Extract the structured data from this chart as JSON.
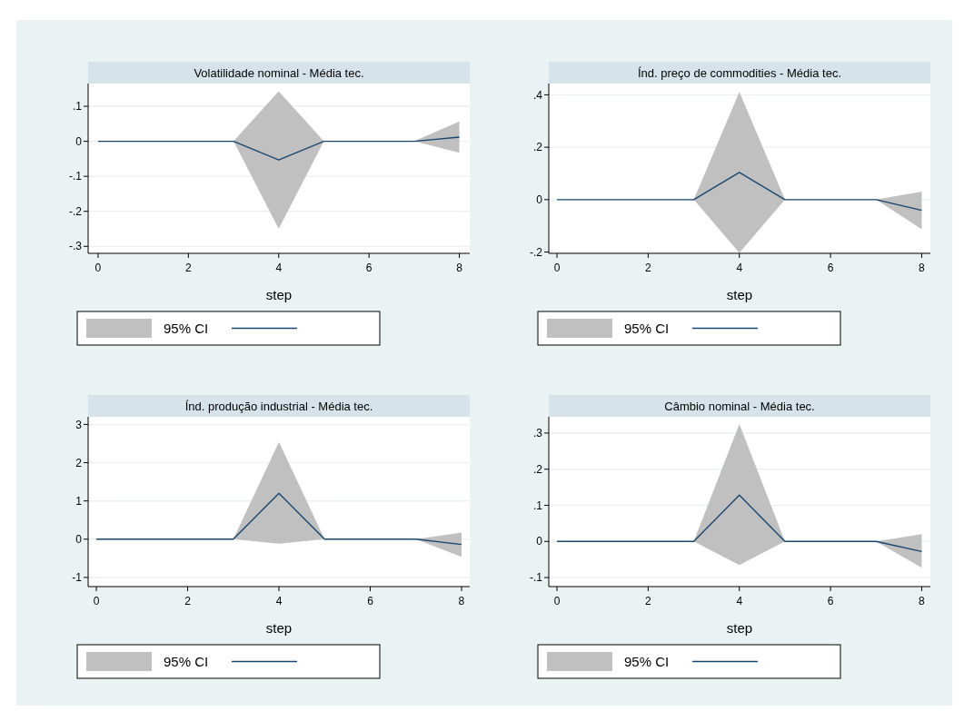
{
  "chart_data": [
    {
      "type": "line",
      "title": "Volatilidade nominal - Média tec.",
      "xlabel": "step",
      "x": [
        0,
        1,
        2,
        3,
        4,
        5,
        6,
        7,
        8
      ],
      "xlim": [
        -0.22,
        8.23
      ],
      "xticks": [
        0,
        2,
        4,
        6,
        8
      ],
      "ylim": [
        -0.32,
        0.165
      ],
      "yticks": [
        {
          "value": -0.3,
          "label": "-.3"
        },
        {
          "value": -0.2,
          "label": "-.2"
        },
        {
          "value": -0.1,
          "label": "-.1"
        },
        0,
        {
          "value": 0.1,
          "label": ".1"
        }
      ],
      "grid": "y",
      "annotations": [
        "95% CI"
      ],
      "series": [
        {
          "color": "#1a476f",
          "values": [
            0,
            0,
            0,
            0,
            -0.053,
            0,
            0,
            0,
            0.012
          ],
          "lower": [
            0,
            0,
            0,
            0,
            -0.25,
            0,
            0,
            0,
            -0.033
          ],
          "upper": [
            0,
            0,
            0,
            0,
            0.143,
            0,
            0,
            0,
            0.057
          ]
        }
      ]
    },
    {
      "type": "line",
      "title": "Índ. preço de commodities - Média tec.",
      "xlabel": "step",
      "x": [
        0,
        1,
        2,
        3,
        4,
        5,
        6,
        7,
        8
      ],
      "xlim": [
        -0.18,
        8.19
      ],
      "xticks": [
        0,
        2,
        4,
        6,
        8
      ],
      "ylim": [
        -0.205,
        0.443
      ],
      "yticks": [
        {
          "value": -0.2,
          "label": "-.2"
        },
        0,
        {
          "value": 0.2,
          "label": ".2"
        },
        {
          "value": 0.4,
          "label": ".4"
        }
      ],
      "grid": "y",
      "annotations": [
        "95% CI"
      ],
      "series": [
        {
          "color": "#1a476f",
          "values": [
            0,
            0,
            0,
            0,
            0.104,
            0,
            0,
            0,
            -0.041
          ],
          "lower": [
            0,
            0,
            0,
            0,
            -0.203,
            0,
            0,
            0,
            -0.113
          ],
          "upper": [
            0,
            0,
            0,
            0,
            0.411,
            0,
            0,
            0,
            0.031
          ]
        }
      ]
    },
    {
      "type": "line",
      "title": "Índ. produção industrial - Média tec.",
      "xlabel": "step",
      "x": [
        0,
        1,
        2,
        3,
        4,
        5,
        6,
        7,
        8
      ],
      "xlim": [
        -0.18,
        8.18
      ],
      "xticks": [
        0,
        2,
        4,
        6,
        8
      ],
      "ylim": [
        -1.24,
        3.2
      ],
      "yticks": [
        -1,
        0,
        1,
        2,
        3
      ],
      "grid": "y",
      "annotations": [
        "95% CI"
      ],
      "series": [
        {
          "color": "#1a476f",
          "values": [
            0,
            0,
            0,
            0,
            1.2,
            0,
            0,
            0,
            -0.14
          ],
          "lower": [
            0,
            0,
            0,
            0,
            -0.12,
            0,
            0,
            0,
            -0.46
          ],
          "upper": [
            0,
            0,
            0,
            0,
            2.54,
            0,
            0,
            0,
            0.17
          ]
        }
      ]
    },
    {
      "type": "line",
      "title": "Câmbio nominal - Média tec.",
      "xlabel": "step",
      "x": [
        0,
        1,
        2,
        3,
        4,
        5,
        6,
        7,
        8
      ],
      "xlim": [
        -0.18,
        8.19
      ],
      "xticks": [
        0,
        2,
        4,
        6,
        8
      ],
      "ylim": [
        -0.125,
        0.345
      ],
      "yticks": [
        {
          "value": -0.1,
          "label": "-.1"
        },
        0,
        {
          "value": 0.1,
          "label": ".1"
        },
        {
          "value": 0.2,
          "label": ".2"
        },
        {
          "value": 0.3,
          "label": ".3"
        }
      ],
      "grid": "y",
      "annotations": [
        "95% CI"
      ],
      "series": [
        {
          "color": "#1a476f",
          "values": [
            0,
            0,
            0,
            0,
            0.128,
            0,
            0,
            0,
            -0.028
          ],
          "lower": [
            0,
            0,
            0,
            0,
            -0.065,
            0,
            0,
            0,
            -0.073
          ],
          "upper": [
            0,
            0,
            0,
            0,
            0.325,
            0,
            0,
            0,
            0.02
          ]
        }
      ]
    }
  ]
}
